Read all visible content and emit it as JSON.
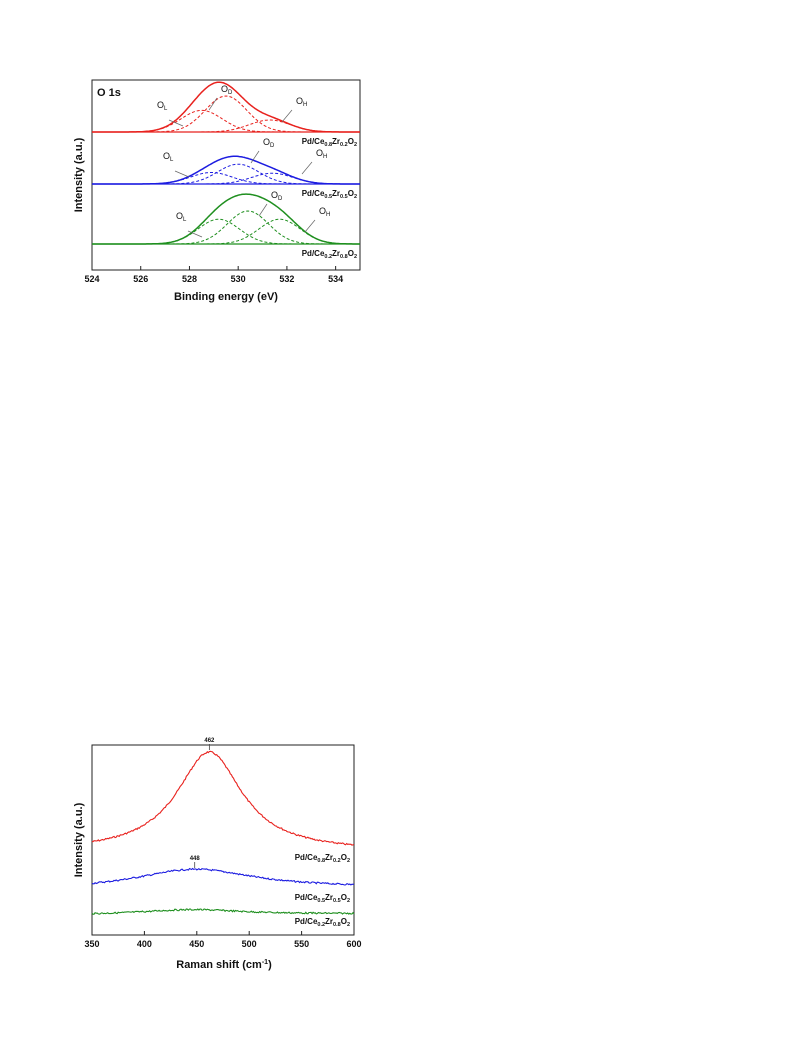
{
  "chart_data": [
    {
      "type": "line",
      "title": "O 1s",
      "xlabel": "Binding energy (eV)",
      "ylabel": "Intensity (a.u.)",
      "xlim": [
        524,
        535
      ],
      "xticks": [
        524,
        526,
        528,
        530,
        532,
        534
      ],
      "y_ticks_shown": false,
      "stacked": true,
      "series": [
        {
          "name": "Pd/Ce0.8Zr0.2O2",
          "label_parts": [
            "Pd/Ce",
            "0.8",
            "Zr",
            "0.2",
            "O",
            "2"
          ],
          "color": "#e8221e",
          "total_peak_center": 529.4,
          "components": [
            {
              "name": "OL",
              "center": 528.5,
              "height": 0.45
            },
            {
              "name": "OD",
              "center": 529.5,
              "height": 0.75
            },
            {
              "name": "OH",
              "center": 531.3,
              "height": 0.25
            }
          ],
          "annotations": [
            {
              "main": "O",
              "sub": "L"
            },
            {
              "main": "O",
              "sub": "D"
            },
            {
              "main": "O",
              "sub": "H"
            }
          ]
        },
        {
          "name": "Pd/Ce0.5Zr0.5O2",
          "label_parts": [
            "Pd/Ce",
            "0.5",
            "Zr",
            "0.5",
            "O",
            "2"
          ],
          "color": "#1c1ce0",
          "total_peak_center": 529.9,
          "components": [
            {
              "name": "OL",
              "center": 528.9,
              "height": 0.32
            },
            {
              "name": "OD",
              "center": 530.0,
              "height": 0.55
            },
            {
              "name": "OH",
              "center": 531.4,
              "height": 0.3
            }
          ],
          "annotations": [
            {
              "main": "O",
              "sub": "L"
            },
            {
              "main": "O",
              "sub": "D"
            },
            {
              "main": "O",
              "sub": "H"
            }
          ]
        },
        {
          "name": "Pd/Ce0.2Zr0.8O2",
          "label_parts": [
            "Pd/Ce",
            "0.2",
            "Zr",
            "0.8",
            "O",
            "2"
          ],
          "color": "#1f8f1f",
          "total_peak_center": 530.4,
          "components": [
            {
              "name": "OL",
              "center": 529.2,
              "height": 0.45
            },
            {
              "name": "OD",
              "center": 530.4,
              "height": 0.6
            },
            {
              "name": "OH",
              "center": 531.7,
              "height": 0.45
            }
          ],
          "annotations": [
            {
              "main": "O",
              "sub": "L"
            },
            {
              "main": "O",
              "sub": "D"
            },
            {
              "main": "O",
              "sub": "H"
            }
          ]
        }
      ]
    },
    {
      "type": "line",
      "title": "",
      "xlabel": "Raman shift (cm",
      "xlabel_sup": "-1",
      "xlabel_end": ")",
      "ylabel": "Intensity (a.u.)",
      "xlim": [
        350,
        600
      ],
      "xticks": [
        350,
        400,
        450,
        500,
        550,
        600
      ],
      "y_ticks_shown": false,
      "stacked": true,
      "series": [
        {
          "name": "Pd/Ce0.8Zr0.2O2",
          "label_parts": [
            "Pd/Ce",
            "0.8",
            "Zr",
            "0.2",
            "O",
            "2"
          ],
          "color": "#e8221e",
          "peak_position": 462,
          "peak_label": "462",
          "baseline": 0.0,
          "peak_height": 1.0
        },
        {
          "name": "Pd/Ce0.5Zr0.5O2",
          "label_parts": [
            "Pd/Ce",
            "0.5",
            "Zr",
            "0.5",
            "O",
            "2"
          ],
          "color": "#1c1ce0",
          "peak_position": 448,
          "peak_label": "448",
          "baseline": 0.0,
          "peak_height": 0.22
        },
        {
          "name": "Pd/Ce0.2Zr0.8O2",
          "label_parts": [
            "Pd/Ce",
            "0.2",
            "Zr",
            "0.8",
            "O",
            "2"
          ],
          "color": "#1f8f1f",
          "peak_position": 445,
          "peak_label": "",
          "baseline": 0.0,
          "peak_height": 0.06
        }
      ]
    }
  ]
}
